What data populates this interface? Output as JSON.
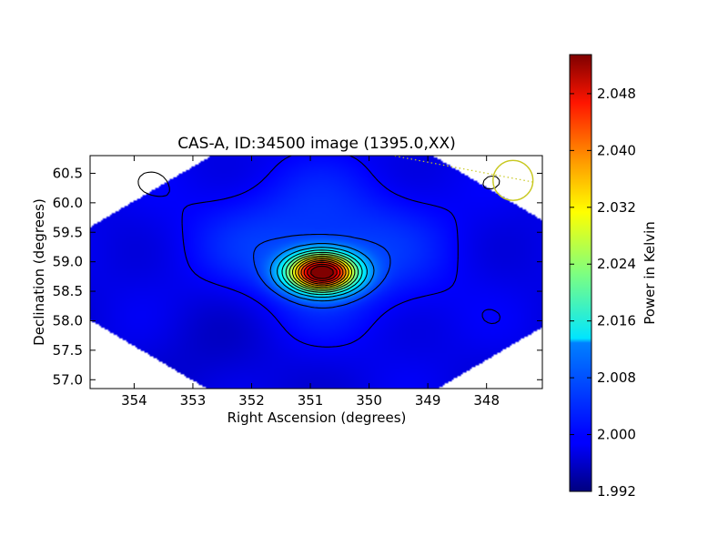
{
  "chart_data": {
    "type": "heatmap",
    "title": "CAS-A, ID:34500 image (1395.0,XX)",
    "xlabel": "Right Ascension (degrees)",
    "ylabel": "Declination (degrees)",
    "colorbar_label": "Power in Kelvin",
    "xlim": [
      354.75,
      347.05
    ],
    "ylim": [
      56.85,
      60.8
    ],
    "x_ticks": [
      354,
      353,
      352,
      351,
      350,
      349,
      348
    ],
    "x_tick_labels": [
      "354",
      "353",
      "352",
      "351",
      "350",
      "349",
      "348"
    ],
    "y_ticks": [
      57.0,
      57.5,
      58.0,
      58.5,
      59.0,
      59.5,
      60.0,
      60.5
    ],
    "y_tick_labels": [
      "57.0",
      "57.5",
      "58.0",
      "58.5",
      "59.0",
      "59.5",
      "60.0",
      "60.5"
    ],
    "colorbar_range": [
      1.992,
      2.0535
    ],
    "colorbar_ticks": [
      1.992,
      2.0,
      2.008,
      2.016,
      2.024,
      2.032,
      2.04,
      2.048
    ],
    "colorbar_tick_labels": [
      "1.992",
      "2.000",
      "2.008",
      "2.016",
      "2.024",
      "2.032",
      "2.040",
      "2.048"
    ],
    "colormap": "jet",
    "peak": {
      "ra": 350.8,
      "dec": 58.82,
      "value": 2.0535
    },
    "background_value": 1.998,
    "contour_count": 14,
    "contour_color": "#000000",
    "beam_marker": {
      "ra": 347.55,
      "dec": 60.38,
      "radius_deg": 0.34,
      "color": "#c8c820"
    },
    "dotted_line": {
      "from": [
        349.7,
        60.82
      ],
      "to": [
        347.2,
        60.35
      ],
      "color": "#c8c820"
    },
    "grid": false
  }
}
